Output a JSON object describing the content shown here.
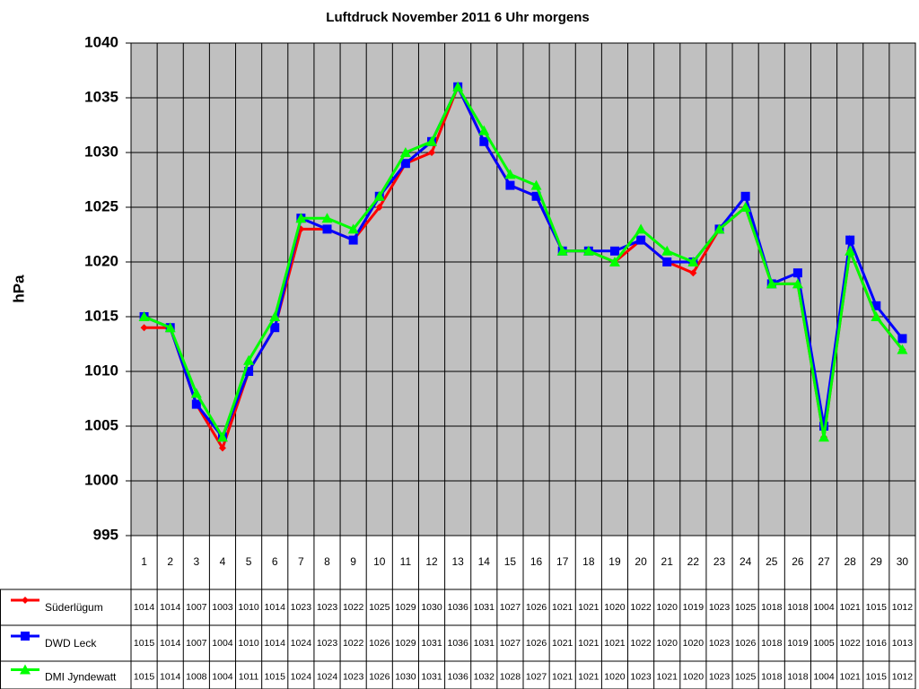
{
  "chart_data": {
    "type": "line",
    "title": "Luftdruck November 2011 6 Uhr morgens",
    "y_label": "hPa",
    "categories": [
      "1",
      "2",
      "3",
      "4",
      "5",
      "6",
      "7",
      "8",
      "9",
      "10",
      "11",
      "12",
      "13",
      "14",
      "15",
      "16",
      "17",
      "18",
      "19",
      "20",
      "21",
      "22",
      "23",
      "24",
      "25",
      "26",
      "27",
      "28",
      "29",
      "30"
    ],
    "series": [
      {
        "name": "Süderlügum",
        "color": "#ff0000",
        "marker": "diamond",
        "values": [
          1014,
          1014,
          1007,
          1003,
          1010,
          1014,
          1023,
          1023,
          1022,
          1025,
          1029,
          1030,
          1036,
          1031,
          1027,
          1026,
          1021,
          1021,
          1020,
          1022,
          1020,
          1019,
          1023,
          1025,
          1018,
          1018,
          1004,
          1021,
          1015,
          1012
        ]
      },
      {
        "name": "DWD Leck",
        "color": "#0000ff",
        "marker": "square",
        "values": [
          1015,
          1014,
          1007,
          1004,
          1010,
          1014,
          1024,
          1023,
          1022,
          1026,
          1029,
          1031,
          1036,
          1031,
          1027,
          1026,
          1021,
          1021,
          1021,
          1022,
          1020,
          1020,
          1023,
          1026,
          1018,
          1019,
          1005,
          1022,
          1016,
          1013
        ]
      },
      {
        "name": "DMI Jyndewatt",
        "color": "#00ff00",
        "marker": "triangle",
        "values": [
          1015,
          1014,
          1008,
          1004,
          1011,
          1015,
          1024,
          1024,
          1023,
          1026,
          1030,
          1031,
          1036,
          1032,
          1028,
          1027,
          1021,
          1021,
          1020,
          1023,
          1021,
          1020,
          1023,
          1025,
          1018,
          1018,
          1004,
          1021,
          1015,
          1012
        ]
      }
    ],
    "ylim": [
      995,
      1040
    ],
    "yticks": [
      995,
      1000,
      1005,
      1010,
      1015,
      1020,
      1025,
      1030,
      1035,
      1040
    ],
    "grid": true
  }
}
